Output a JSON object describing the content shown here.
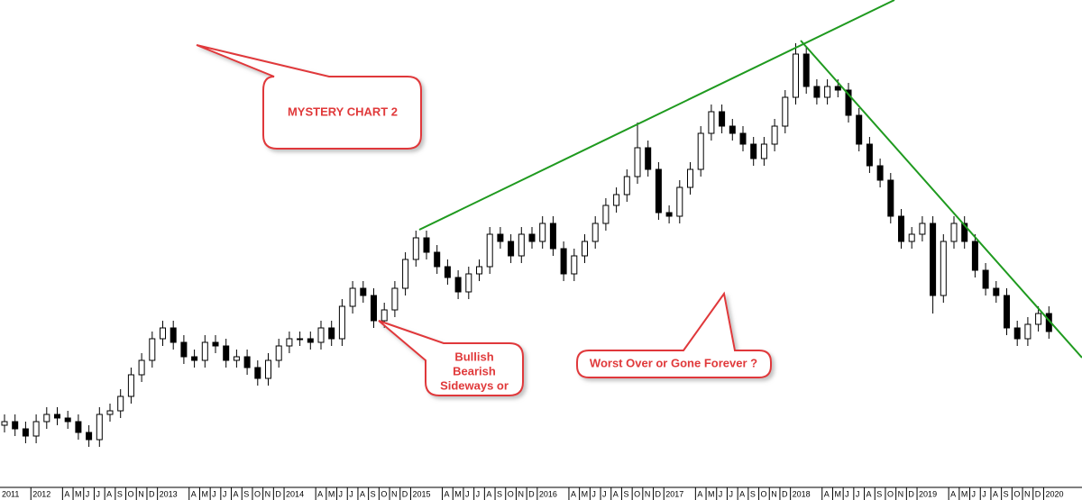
{
  "chart_data": {
    "type": "candlestick",
    "categories": [
      "2011",
      null,
      null,
      "2012",
      null,
      null,
      "A",
      "M",
      "J",
      "J",
      "A",
      "S",
      "O",
      "N",
      "D",
      "2013",
      null,
      null,
      "A",
      "M",
      "J",
      "J",
      "A",
      "S",
      "O",
      "N",
      "D",
      "2014",
      null,
      null,
      "A",
      "M",
      "J",
      "J",
      "A",
      "S",
      "O",
      "N",
      "D",
      "2015",
      null,
      null,
      "A",
      "M",
      "J",
      "J",
      "A",
      "S",
      "O",
      "N",
      "D",
      "2016",
      null,
      null,
      "A",
      "M",
      "J",
      "J",
      "A",
      "S",
      "O",
      "N",
      "D",
      "2017",
      null,
      null,
      "A",
      "M",
      "J",
      "J",
      "A",
      "S",
      "O",
      "N",
      "D",
      "2018",
      null,
      null,
      "A",
      "M",
      "J",
      "J",
      "A",
      "S",
      "O",
      "N",
      "D",
      "2019",
      null,
      null,
      "A",
      "M",
      "J",
      "J",
      "A",
      "S",
      "O",
      "N",
      "D",
      "2020"
    ],
    "open": [
      17,
      18,
      16,
      14,
      18,
      20,
      19,
      18,
      15,
      13,
      20,
      21,
      25,
      31,
      35,
      41,
      44,
      40,
      36,
      35,
      40,
      39,
      35,
      36,
      33,
      30,
      35,
      39,
      41,
      41,
      40,
      44,
      41,
      50,
      55,
      53,
      46,
      49,
      55,
      63,
      69,
      65,
      61,
      58,
      54,
      59,
      61,
      70,
      68,
      64,
      70,
      68,
      73,
      66,
      59,
      64,
      68,
      73,
      78,
      81,
      86,
      94,
      88,
      76,
      75,
      83,
      88,
      98,
      104,
      100,
      98,
      95,
      91,
      95,
      100,
      108,
      120,
      111,
      108,
      111,
      110,
      103,
      95,
      89,
      85,
      75,
      68,
      70,
      73,
      53,
      68,
      73,
      68,
      60,
      55,
      53,
      44,
      41,
      45,
      48
    ],
    "high": [
      20,
      20,
      18,
      20,
      22,
      22,
      21,
      20,
      17,
      22,
      23,
      27,
      33,
      37,
      43,
      46,
      46,
      42,
      38,
      42,
      42,
      41,
      38,
      38,
      35,
      37,
      41,
      43,
      43,
      43,
      46,
      46,
      52,
      57,
      57,
      55,
      51,
      57,
      65,
      71,
      71,
      67,
      63,
      60,
      61,
      63,
      72,
      72,
      70,
      72,
      72,
      75,
      75,
      68,
      66,
      70,
      75,
      80,
      83,
      88,
      101,
      96,
      90,
      78,
      85,
      90,
      100,
      106,
      106,
      102,
      100,
      97,
      97,
      102,
      110,
      123,
      122,
      113,
      113,
      113,
      112,
      105,
      97,
      91,
      87,
      77,
      72,
      75,
      75,
      70,
      75,
      75,
      70,
      62,
      57,
      55,
      46,
      47,
      50,
      50
    ],
    "low": [
      15,
      14,
      12,
      12,
      16,
      17,
      16,
      13,
      11,
      11,
      18,
      19,
      23,
      29,
      33,
      39,
      38,
      34,
      33,
      33,
      37,
      33,
      33,
      31,
      28,
      28,
      33,
      37,
      39,
      38,
      38,
      39,
      39,
      48,
      51,
      44,
      44,
      47,
      53,
      61,
      63,
      59,
      56,
      52,
      52,
      57,
      59,
      66,
      62,
      62,
      66,
      66,
      64,
      57,
      57,
      62,
      66,
      71,
      76,
      79,
      84,
      86,
      74,
      73,
      73,
      81,
      86,
      96,
      98,
      96,
      93,
      89,
      89,
      93,
      98,
      106,
      109,
      106,
      106,
      108,
      101,
      93,
      87,
      83,
      73,
      66,
      66,
      68,
      48,
      51,
      66,
      66,
      58,
      53,
      51,
      42,
      39,
      39,
      43,
      41
    ],
    "close": [
      18,
      16,
      14,
      18,
      20,
      19,
      18,
      15,
      13,
      20,
      21,
      25,
      31,
      35,
      41,
      44,
      40,
      36,
      35,
      40,
      39,
      35,
      36,
      33,
      30,
      35,
      39,
      41,
      41,
      40,
      44,
      41,
      50,
      55,
      53,
      46,
      49,
      55,
      63,
      69,
      65,
      61,
      58,
      54,
      59,
      61,
      70,
      68,
      64,
      70,
      68,
      73,
      66,
      59,
      64,
      68,
      73,
      78,
      81,
      86,
      94,
      88,
      76,
      75,
      83,
      88,
      98,
      104,
      100,
      98,
      95,
      91,
      95,
      100,
      108,
      120,
      111,
      108,
      111,
      110,
      103,
      95,
      89,
      85,
      75,
      68,
      70,
      73,
      53,
      68,
      73,
      68,
      60,
      55,
      53,
      44,
      41,
      45,
      48,
      43
    ],
    "ylim": [
      0,
      135
    ],
    "color": "#000000",
    "annotations": [
      "MYSTERY CHART 2",
      "Bullish",
      "Bearish",
      "Sideways or",
      "Worst Over or Gone Forever ?"
    ]
  }
}
